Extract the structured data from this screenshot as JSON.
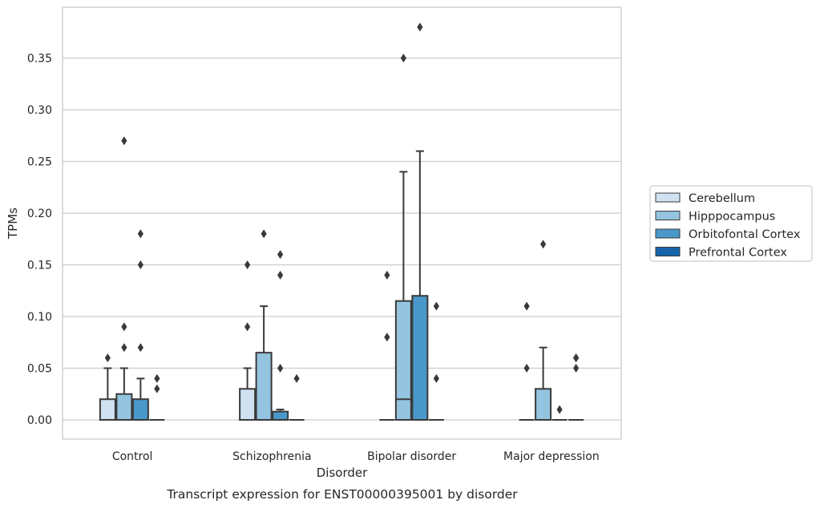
{
  "chart_data": {
    "type": "boxplot",
    "caption": "Transcript expression for ENST00000395001 by disorder",
    "xlabel": "Disorder",
    "ylabel": "TPMs",
    "ylim": [
      -0.018,
      0.398
    ],
    "yticks": [
      "0.00",
      "0.05",
      "0.10",
      "0.15",
      "0.20",
      "0.25",
      "0.30",
      "0.35"
    ],
    "ytick_values": [
      0.0,
      0.05,
      0.1,
      0.15,
      0.2,
      0.25,
      0.3,
      0.35
    ],
    "grid": true,
    "legend_position": "right",
    "categories": [
      "Control",
      "Schizophrenia",
      "Bipolar disorder",
      "Major depression"
    ],
    "series": [
      {
        "name": "Cerebellum",
        "color": "#d0e1f2",
        "boxes": [
          {
            "q1": 0.0,
            "median": 0.0,
            "q3": 0.02,
            "whisker_low": 0.0,
            "whisker_high": 0.05,
            "outliers": [
              0.06
            ]
          },
          {
            "q1": 0.0,
            "median": 0.0,
            "q3": 0.03,
            "whisker_low": 0.0,
            "whisker_high": 0.05,
            "outliers": [
              0.09,
              0.15
            ]
          },
          {
            "q1": 0.0,
            "median": 0.0,
            "q3": 0.0,
            "whisker_low": 0.0,
            "whisker_high": 0.0,
            "outliers": [
              0.08,
              0.14
            ]
          },
          {
            "q1": 0.0,
            "median": 0.0,
            "q3": 0.0,
            "whisker_low": 0.0,
            "whisker_high": 0.0,
            "outliers": [
              0.05,
              0.11
            ]
          }
        ]
      },
      {
        "name": "Hipppocampus",
        "color": "#94c4df",
        "boxes": [
          {
            "q1": 0.0,
            "median": 0.0,
            "q3": 0.025,
            "whisker_low": 0.0,
            "whisker_high": 0.05,
            "outliers": [
              0.07,
              0.09,
              0.27
            ]
          },
          {
            "q1": 0.0,
            "median": 0.0,
            "q3": 0.065,
            "whisker_low": 0.0,
            "whisker_high": 0.11,
            "outliers": [
              0.18
            ]
          },
          {
            "q1": 0.0,
            "median": 0.02,
            "q3": 0.115,
            "whisker_low": 0.0,
            "whisker_high": 0.24,
            "outliers": [
              0.35
            ]
          },
          {
            "q1": 0.0,
            "median": 0.0,
            "q3": 0.03,
            "whisker_low": 0.0,
            "whisker_high": 0.07,
            "outliers": [
              0.17
            ]
          }
        ]
      },
      {
        "name": "Orbitofontal Cortex",
        "color": "#4a98c9",
        "boxes": [
          {
            "q1": 0.0,
            "median": 0.0,
            "q3": 0.02,
            "whisker_low": 0.0,
            "whisker_high": 0.04,
            "outliers": [
              0.07,
              0.15,
              0.18
            ]
          },
          {
            "q1": 0.0,
            "median": 0.0,
            "q3": 0.008,
            "whisker_low": 0.0,
            "whisker_high": 0.01,
            "outliers": [
              0.05,
              0.14,
              0.16
            ]
          },
          {
            "q1": 0.0,
            "median": 0.0,
            "q3": 0.12,
            "whisker_low": 0.0,
            "whisker_high": 0.26,
            "outliers": [
              0.38
            ]
          },
          {
            "q1": 0.0,
            "median": 0.0,
            "q3": 0.0,
            "whisker_low": 0.0,
            "whisker_high": 0.0,
            "outliers": [
              0.01
            ]
          }
        ]
      },
      {
        "name": "Prefrontal Cortex",
        "color": "#1764ab",
        "boxes": [
          {
            "q1": 0.0,
            "median": 0.0,
            "q3": 0.0,
            "whisker_low": 0.0,
            "whisker_high": 0.0,
            "outliers": [
              0.03,
              0.04
            ]
          },
          {
            "q1": 0.0,
            "median": 0.0,
            "q3": 0.0,
            "whisker_low": 0.0,
            "whisker_high": 0.0,
            "outliers": [
              0.04
            ]
          },
          {
            "q1": 0.0,
            "median": 0.0,
            "q3": 0.0,
            "whisker_low": 0.0,
            "whisker_high": 0.0,
            "outliers": [
              0.04,
              0.11
            ]
          },
          {
            "q1": 0.0,
            "median": 0.0,
            "q3": 0.0,
            "whisker_low": 0.0,
            "whisker_high": 0.0,
            "outliers": [
              0.05,
              0.06,
              0.06
            ]
          }
        ]
      }
    ]
  }
}
